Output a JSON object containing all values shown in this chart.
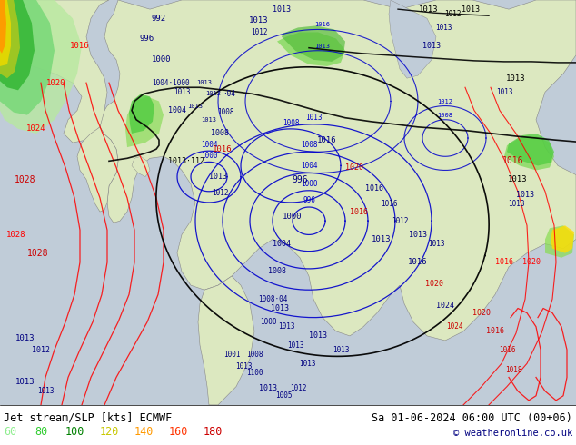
{
  "title_left": "Jet stream/SLP [kts] ECMWF",
  "title_right": "Sa 01-06-2024 06:00 UTC (00+06)",
  "copyright": "© weatheronline.co.uk",
  "legend_values": [
    60,
    80,
    100,
    120,
    140,
    160,
    180
  ],
  "legend_colors": [
    "#90ee90",
    "#32cd32",
    "#008000",
    "#c8c800",
    "#ff9900",
    "#ff3300",
    "#cc0000"
  ],
  "ocean_color": "#c8d8e0",
  "land_color": "#d8e8c0",
  "fig_width": 6.34,
  "fig_height": 4.9,
  "dpi": 100,
  "bottom_bg": "#ffffff",
  "font_color_title": "#000000",
  "font_color_copyright": "#000080",
  "font_size_title": 8.5,
  "font_size_legend": 8.5,
  "font_size_copyright": 7.5
}
